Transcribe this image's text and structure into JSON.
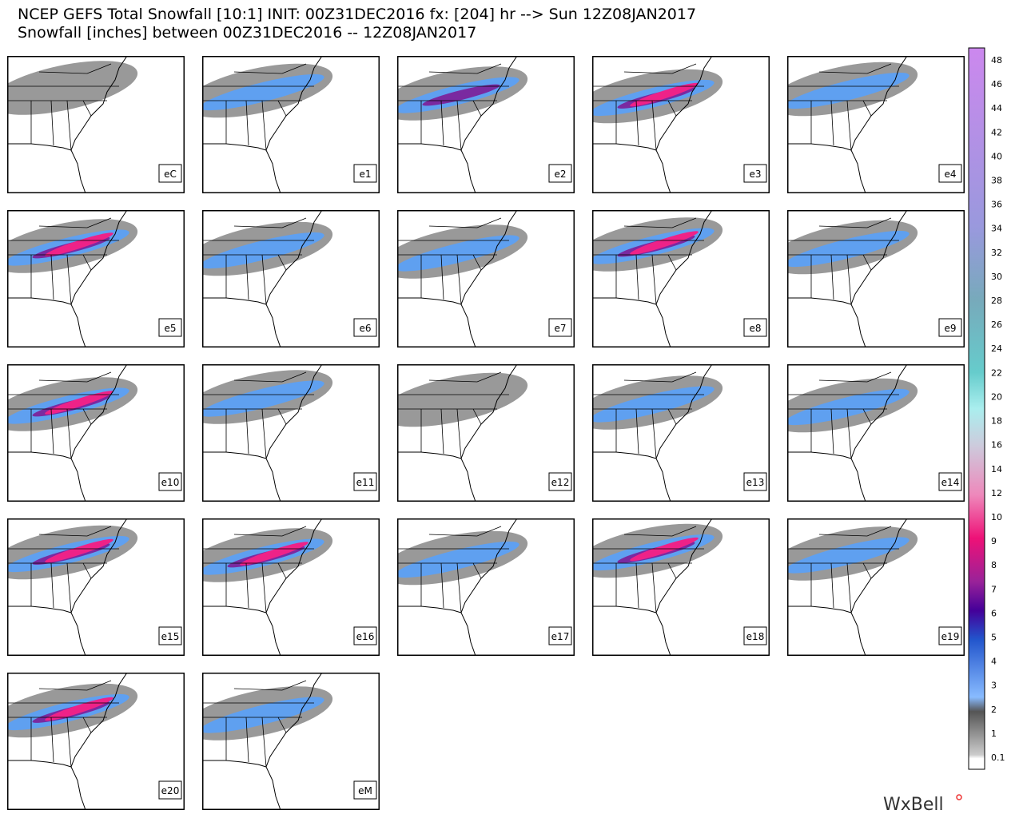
{
  "header": {
    "title": "NCEP GEFS Total Snowfall [10:1] INIT: 00Z31DEC2016 fx: [204] hr --> Sun 12Z08JAN2017",
    "subtitle": "Snowfall [inches] between 00Z31DEC2016 -- 12Z08JAN2017"
  },
  "panels": [
    {
      "label": "eC"
    },
    {
      "label": "e1"
    },
    {
      "label": "e2"
    },
    {
      "label": "e3"
    },
    {
      "label": "e4"
    },
    {
      "label": "e5"
    },
    {
      "label": "e6"
    },
    {
      "label": "e7"
    },
    {
      "label": "e8"
    },
    {
      "label": "e9"
    },
    {
      "label": "e10"
    },
    {
      "label": "e11"
    },
    {
      "label": "e12"
    },
    {
      "label": "e13"
    },
    {
      "label": "e14"
    },
    {
      "label": "e15"
    },
    {
      "label": "e16"
    },
    {
      "label": "e17"
    },
    {
      "label": "e18"
    },
    {
      "label": "e19"
    },
    {
      "label": "e20"
    },
    {
      "label": "eM"
    }
  ],
  "colorbar": {
    "labels": [
      "48",
      "46",
      "44",
      "42",
      "40",
      "38",
      "36",
      "34",
      "32",
      "30",
      "28",
      "26",
      "24",
      "22",
      "20",
      "18",
      "16",
      "14",
      "12",
      "10",
      "9",
      "8",
      "7",
      "6",
      "5",
      "4",
      "3",
      "2",
      "1",
      "0.1"
    ]
  },
  "logo": "WxBell"
}
